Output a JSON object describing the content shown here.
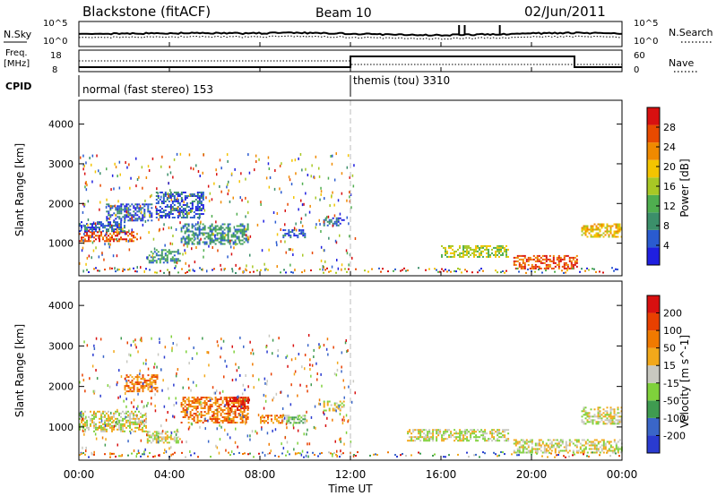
{
  "header": {
    "station": "Blackstone (fitACF)",
    "beam": "Beam 10",
    "date": "02/Jun/2011"
  },
  "noise_panel": {
    "left_label": "N.Sky",
    "right_label": "N.Search",
    "tick_top": "10^5",
    "tick_bottom": "10^0"
  },
  "freq_panel": {
    "left_label_1": "Freq.",
    "left_label_2": "[MHz]",
    "tick_top": "18",
    "tick_bottom": "8",
    "right_label": "Nave",
    "right_tick_top": "60",
    "right_tick_bottom": "0"
  },
  "cpid": {
    "label": "CPID",
    "mode_1": "normal (fast stereo) 153",
    "mode_2": "themis (tou) 3310"
  },
  "x_axis": {
    "label": "Time UT",
    "ticks": [
      "00:00",
      "04:00",
      "08:00",
      "12:00",
      "16:00",
      "20:00",
      "00:00"
    ]
  },
  "power_panel": {
    "ylabel": "Slant Range [km]",
    "yticks": [
      "1000",
      "2000",
      "3000",
      "4000"
    ],
    "colorbar_label": "Power [dB]",
    "colorbar_ticks": [
      "4",
      "8",
      "12",
      "16",
      "20",
      "24",
      "28"
    ]
  },
  "velocity_panel": {
    "ylabel": "Slant Range [km]",
    "yticks": [
      "1000",
      "2000",
      "3000",
      "4000"
    ],
    "colorbar_label": "Velocity [m s^-1]",
    "colorbar_ticks": [
      "200",
      "100",
      "50",
      "15",
      "-15",
      "-50",
      "-100",
      "-200"
    ]
  },
  "chart_data": {
    "type": "heatmap",
    "x_range_hours": [
      0,
      24
    ],
    "y_range_km": [
      180,
      4600
    ],
    "power_colors": [
      "#1f1fe0",
      "#2a5bd0",
      "#3b8f6a",
      "#4fae4f",
      "#a8c825",
      "#f4c400",
      "#f08a00",
      "#e84a00",
      "#d81010"
    ],
    "velocity_colors": [
      "#2a3bd0",
      "#3a66c8",
      "#3f9b50",
      "#7fd13b",
      "#c8c8c0",
      "#f2a81a",
      "#f07a00",
      "#e84000",
      "#d81010"
    ],
    "regions": [
      {
        "panel": "power",
        "t0": 0.0,
        "t1": 2.6,
        "r0": 1050,
        "r1": 1300,
        "level": 7
      },
      {
        "panel": "power",
        "t0": 0.0,
        "t1": 2.0,
        "r0": 1300,
        "r1": 1550,
        "level": 1
      },
      {
        "panel": "power",
        "t0": 1.2,
        "t1": 3.2,
        "r0": 1550,
        "r1": 2000,
        "level": 1
      },
      {
        "panel": "power",
        "t0": 3.4,
        "t1": 5.5,
        "r0": 1650,
        "r1": 2300,
        "level": 1
      },
      {
        "panel": "power",
        "t0": 4.5,
        "t1": 7.5,
        "r0": 1000,
        "r1": 1500,
        "level": 2
      },
      {
        "panel": "power",
        "t0": 3.0,
        "t1": 4.5,
        "r0": 500,
        "r1": 850,
        "level": 2
      },
      {
        "panel": "power",
        "t0": 9.0,
        "t1": 10.0,
        "r0": 1150,
        "r1": 1350,
        "level": 1
      },
      {
        "panel": "power",
        "t0": 10.8,
        "t1": 11.7,
        "r0": 1450,
        "r1": 1650,
        "level": 1
      },
      {
        "panel": "power",
        "t0": 16.0,
        "t1": 19.0,
        "r0": 650,
        "r1": 950,
        "level": 4
      },
      {
        "panel": "power",
        "t0": 19.2,
        "t1": 22.0,
        "r0": 350,
        "r1": 700,
        "level": 7
      },
      {
        "panel": "power",
        "t0": 22.2,
        "t1": 24.0,
        "r0": 1150,
        "r1": 1500,
        "level": 5
      },
      {
        "panel": "velocity",
        "t0": 0.0,
        "t1": 3.0,
        "r0": 900,
        "r1": 1400,
        "level": 4
      },
      {
        "panel": "velocity",
        "t0": 2.0,
        "t1": 3.5,
        "r0": 1900,
        "r1": 2300,
        "level": 6
      },
      {
        "panel": "velocity",
        "t0": 4.5,
        "t1": 7.5,
        "r0": 1100,
        "r1": 1750,
        "level": 6
      },
      {
        "panel": "velocity",
        "t0": 6.5,
        "t1": 7.5,
        "r0": 1400,
        "r1": 1750,
        "level": 8
      },
      {
        "panel": "velocity",
        "t0": 8.0,
        "t1": 9.0,
        "r0": 1100,
        "r1": 1300,
        "level": 6
      },
      {
        "panel": "velocity",
        "t0": 9.0,
        "t1": 10.0,
        "r0": 1100,
        "r1": 1300,
        "level": 3
      },
      {
        "panel": "velocity",
        "t0": 10.8,
        "t1": 11.7,
        "r0": 1400,
        "r1": 1650,
        "level": 4
      },
      {
        "panel": "velocity",
        "t0": 3.0,
        "t1": 4.5,
        "r0": 600,
        "r1": 900,
        "level": 4
      },
      {
        "panel": "velocity",
        "t0": 14.5,
        "t1": 19.0,
        "r0": 650,
        "r1": 950,
        "level": 4
      },
      {
        "panel": "velocity",
        "t0": 19.2,
        "t1": 24.0,
        "r0": 350,
        "r1": 700,
        "level": 4
      },
      {
        "panel": "velocity",
        "t0": 22.2,
        "t1": 24.0,
        "r0": 1100,
        "r1": 1500,
        "level": 4
      }
    ]
  }
}
